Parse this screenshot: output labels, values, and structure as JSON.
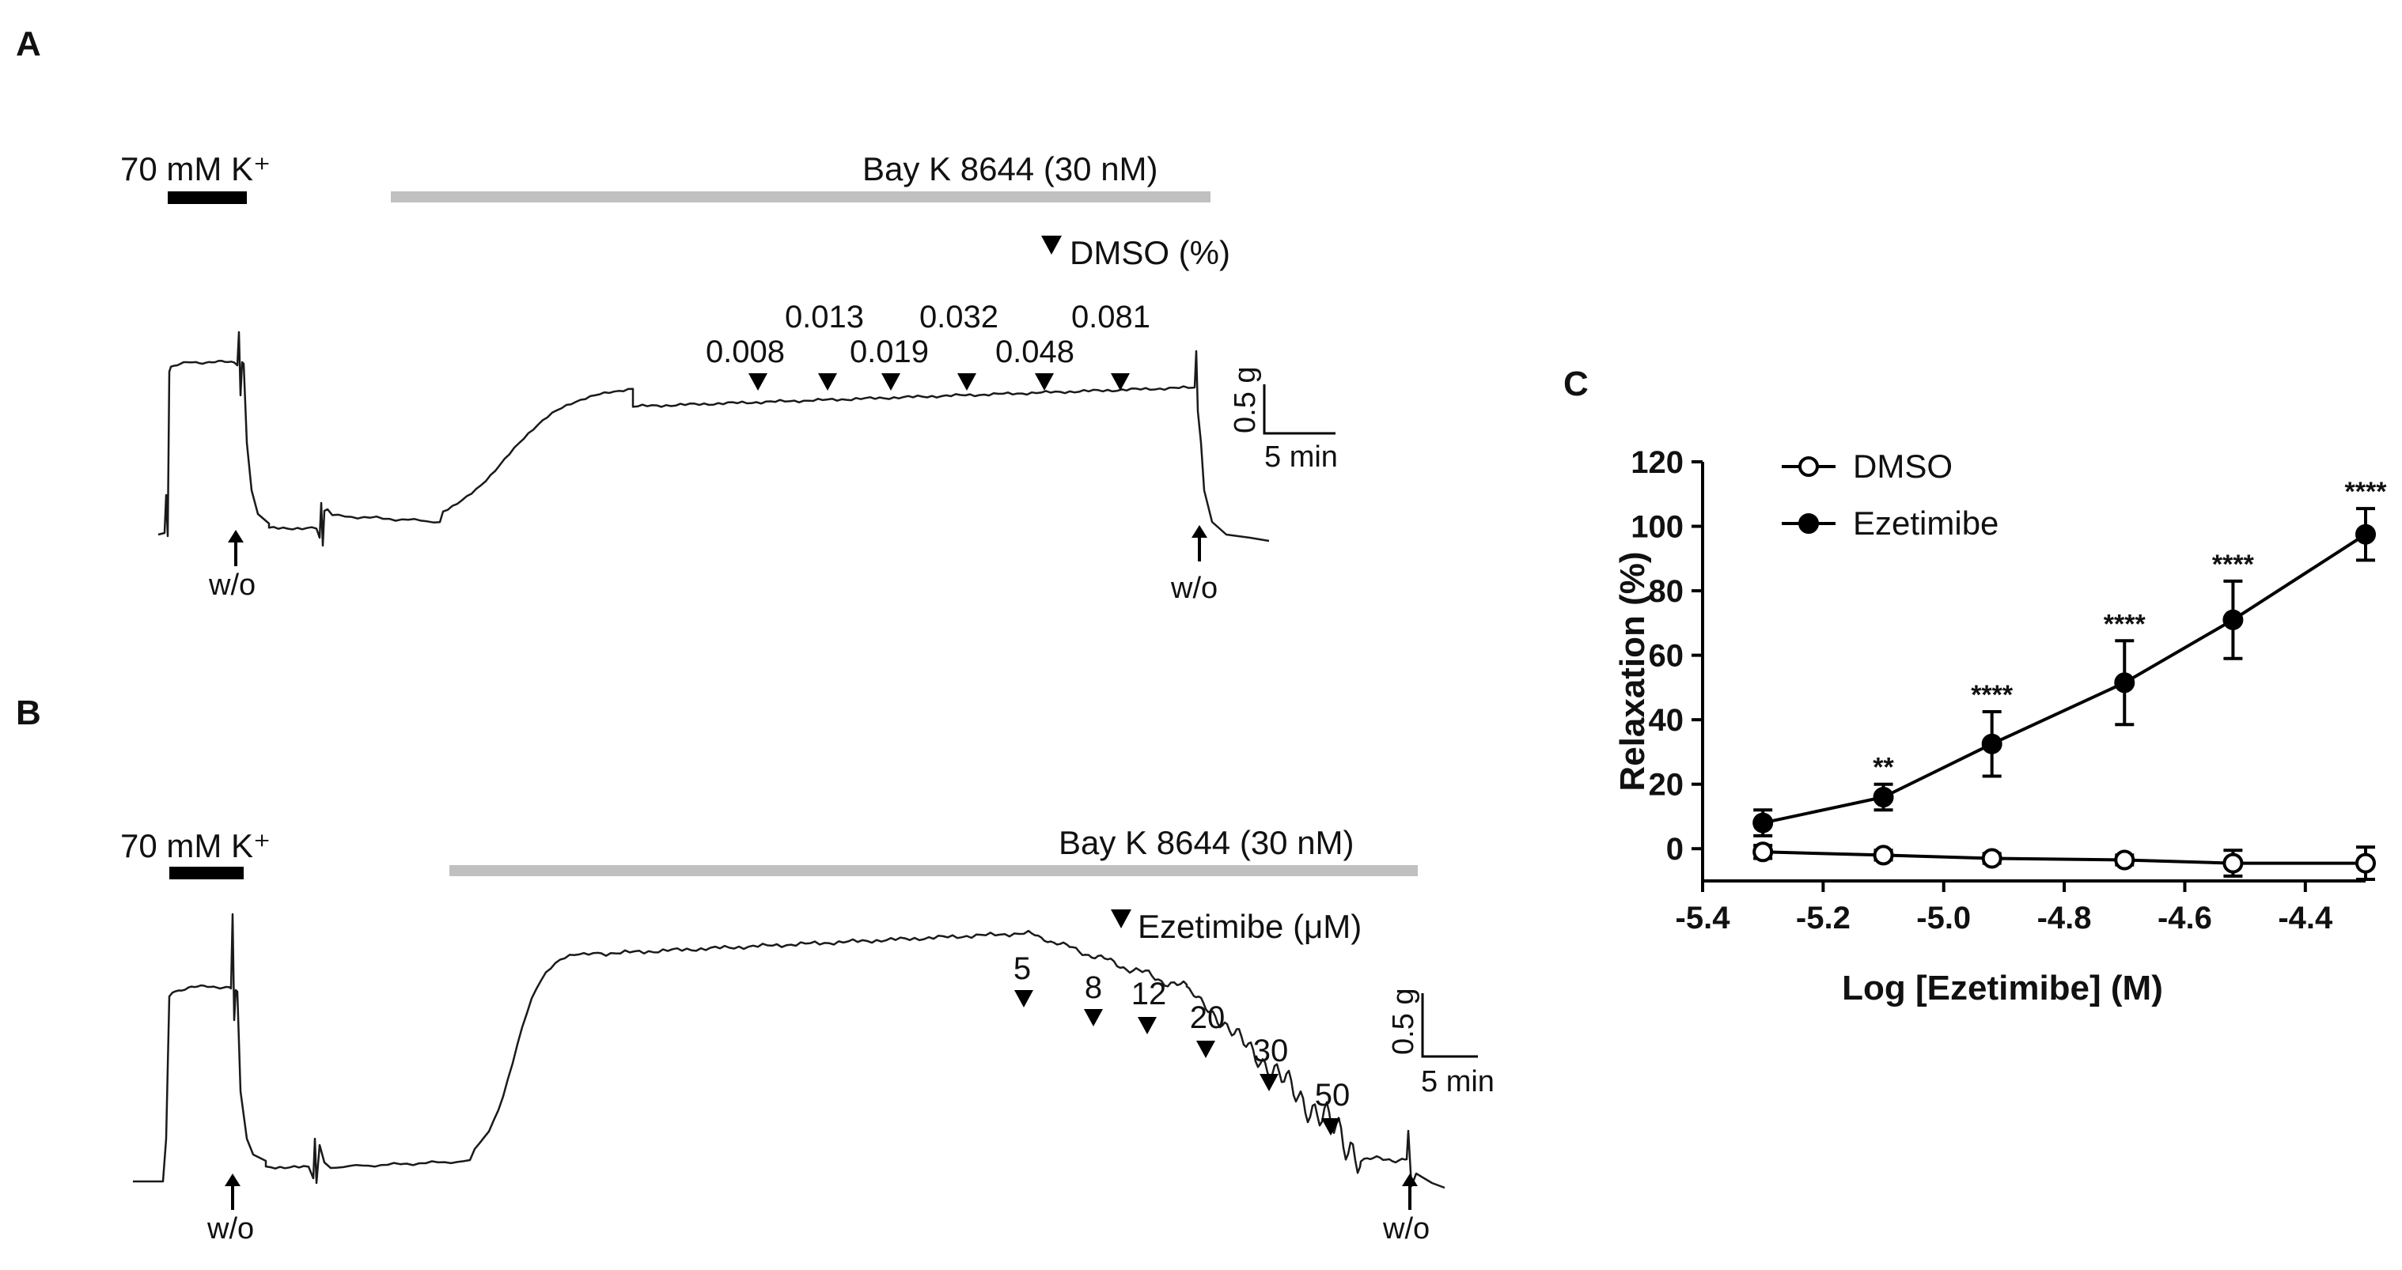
{
  "panels": {
    "a": {
      "letter": "A",
      "k_label": "70 mM K⁺",
      "drug_label": "Bay K 8644 (30 nM)",
      "agent_label": "DMSO (%)",
      "doses": [
        "0.008",
        "0.013",
        "0.019",
        "0.032",
        "0.048",
        "0.081"
      ],
      "washout": "w/o",
      "scale_y": "0.5 g",
      "scale_x": "5 min"
    },
    "b": {
      "letter": "B",
      "k_label": "70 mM K⁺",
      "drug_label": "Bay K 8644 (30 nM)",
      "agent_label": "Ezetimibe (μM)",
      "doses": [
        "5",
        "8",
        "12",
        "20",
        "30",
        "50"
      ],
      "washout": "w/o",
      "scale_y": "0.5 g",
      "scale_x": "5 min"
    },
    "c": {
      "letter": "C"
    }
  },
  "colors": {
    "bar_drug": "#c0c0c0",
    "bar_k": "#000000",
    "trace": "#1a1a1a"
  },
  "chart_data": [
    {
      "panel": "A",
      "type": "line",
      "description_note": "",
      "series": [
        {
          "name": "DMSO (%)",
          "doses": [
            0.008,
            0.013,
            0.019,
            0.032,
            0.048,
            0.081
          ]
        }
      ]
    },
    {
      "panel": "B",
      "type": "line",
      "series": [
        {
          "name": "Ezetimibe (μM)",
          "doses": [
            5,
            8,
            12,
            20,
            30,
            50
          ]
        }
      ]
    },
    {
      "panel": "C",
      "type": "scatter",
      "title": "",
      "xlabel": "Log [Ezetimibe] (M)",
      "ylabel": "Relaxation (%)",
      "xlim": [
        -5.4,
        -4.3
      ],
      "ylim": [
        -10,
        120
      ],
      "xticks": [
        "-5.4",
        "-5.2",
        "-5.0",
        "-4.8",
        "-4.6",
        "-4.4"
      ],
      "yticks": [
        "0",
        "20",
        "40",
        "60",
        "80",
        "100",
        "120"
      ],
      "legend_position": "top-left",
      "series": [
        {
          "name": "DMSO",
          "marker": "open-circle",
          "x": [
            -5.3,
            -5.1,
            -4.92,
            -4.7,
            -4.52,
            -4.3
          ],
          "y": [
            -1,
            -2,
            -3,
            -3.5,
            -4.5,
            -4.5
          ],
          "err": [
            2,
            1.5,
            1.5,
            1.5,
            4,
            5
          ],
          "sig": [
            "",
            "",
            "",
            "",
            "",
            ""
          ]
        },
        {
          "name": "Ezetimibe",
          "marker": "filled-circle",
          "x": [
            -5.3,
            -5.1,
            -4.92,
            -4.7,
            -4.52,
            -4.3
          ],
          "y": [
            8,
            16,
            32.5,
            51.5,
            71,
            97.5
          ],
          "err": [
            4,
            4,
            10,
            13,
            12,
            8
          ],
          "sig": [
            "",
            "**",
            "****",
            "****",
            "****",
            "****"
          ]
        }
      ]
    }
  ]
}
